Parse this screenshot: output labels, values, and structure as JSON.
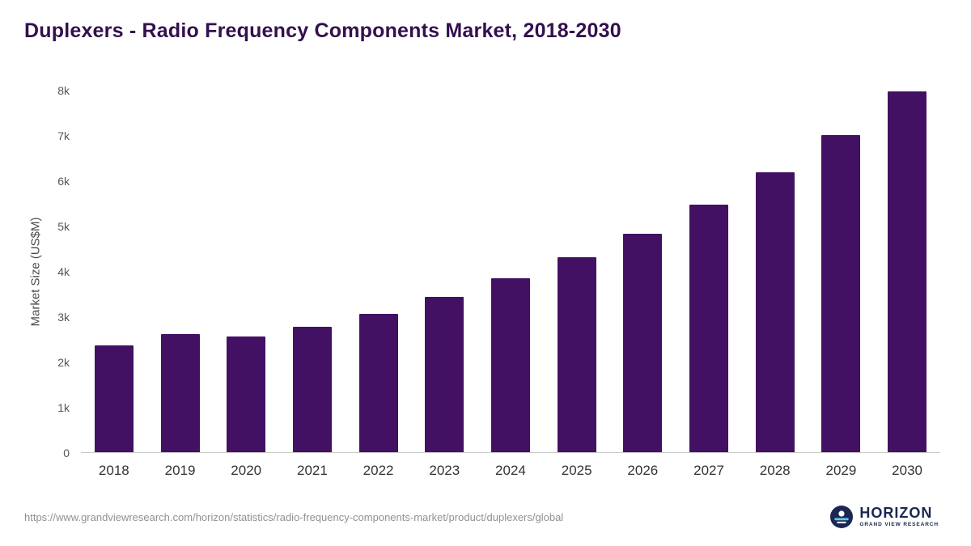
{
  "header": {
    "title": "Duplexers - Radio Frequency Components Market, 2018-2030"
  },
  "chart_data": {
    "type": "bar",
    "title": "Duplexers - Radio Frequency Components Market, 2018-2030",
    "categories": [
      "2018",
      "2019",
      "2020",
      "2021",
      "2022",
      "2023",
      "2024",
      "2025",
      "2026",
      "2027",
      "2028",
      "2029",
      "2030"
    ],
    "values": [
      2360,
      2610,
      2560,
      2770,
      3060,
      3440,
      3850,
      4310,
      4840,
      5470,
      6190,
      7010,
      7990
    ],
    "xlabel": "",
    "ylabel": "Market Size (US$M)",
    "ylim": [
      0,
      8000
    ],
    "yticks": [
      0,
      1000,
      2000,
      3000,
      4000,
      5000,
      6000,
      7000,
      8000
    ],
    "ytick_labels": [
      "0",
      "1k",
      "2k",
      "3k",
      "4k",
      "5k",
      "6k",
      "7k",
      "8k"
    ],
    "grid": false,
    "legend": false,
    "bar_color": "#431163"
  },
  "footer": {
    "source_url": "https://www.grandviewresearch.com/horizon/statistics/radio-frequency-components-market/product/duplexers/global",
    "logo": {
      "name": "HORIZON",
      "subtitle": "GRAND VIEW RESEARCH"
    }
  },
  "colors": {
    "title_text": "#33104e",
    "bar": "#431163",
    "axis_text": "#555555",
    "url_text": "#919191",
    "logo_navy": "#1b2653"
  }
}
